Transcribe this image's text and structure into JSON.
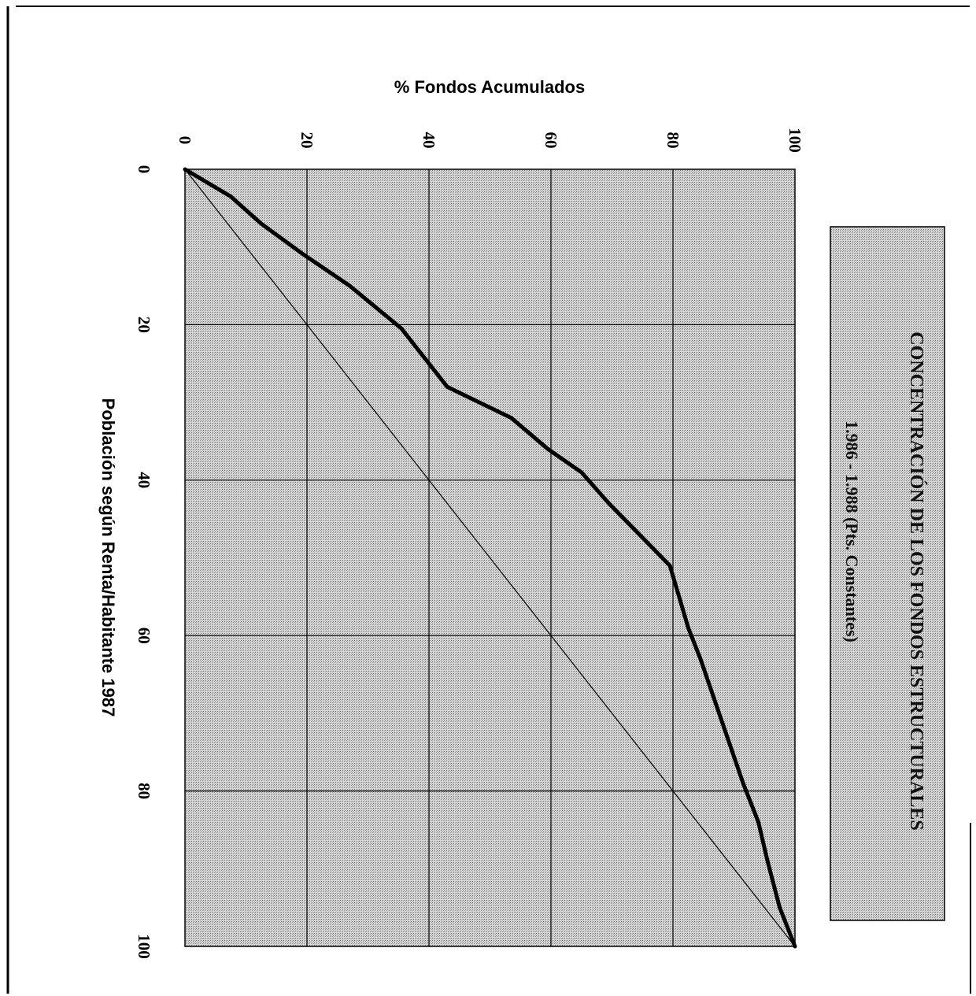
{
  "chart_data": {
    "type": "line",
    "title": "CONCENTRACIÓN DE LOS FONDOS ESTRUCTURALES",
    "subtitle": "1.986 - 1.988 (Pts. Constantes)",
    "xlabel": "Población según Renta/Habitante 1987",
    "ylabel": "% Fondos Acumulados",
    "xlim": [
      0,
      100
    ],
    "ylim": [
      0,
      100
    ],
    "x_ticks": [
      0,
      20,
      40,
      60,
      80,
      100
    ],
    "y_ticks": [
      0,
      20,
      40,
      60,
      80,
      100
    ],
    "grid": true,
    "orientation": "rotated 90° clockwise",
    "series": [
      {
        "style": "bold",
        "x": [
          0,
          3.5,
          7,
          11,
          15,
          20.5,
          24.5,
          28,
          32,
          36,
          39,
          43,
          47,
          51,
          55,
          59,
          63,
          71,
          79,
          84,
          89,
          95,
          100
        ],
        "y": [
          0,
          7.5,
          12.5,
          19.5,
          27,
          35.5,
          39.5,
          43,
          53.5,
          59.5,
          65,
          69.5,
          74.5,
          79.5,
          81,
          82.5,
          84.5,
          88,
          91.5,
          94,
          95.5,
          97.5,
          100
        ]
      },
      {
        "style": "thin",
        "x": [
          0,
          100
        ],
        "y": [
          0,
          100
        ]
      }
    ]
  }
}
